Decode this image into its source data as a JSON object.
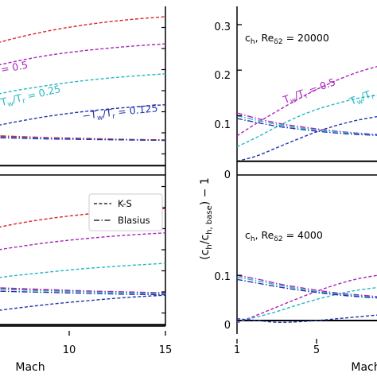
{
  "chart_data": [
    {
      "type": "line",
      "panel": "left-top",
      "xlabel": "",
      "ylabel": "",
      "xlim": [
        5,
        15
      ],
      "ylim": [
        -0.02,
        0.34
      ],
      "xticks": [],
      "yticks": [],
      "annotations": [
        {
          "text": "= 0.5",
          "color": "#aa22bb",
          "at": {
            "x": 5.25,
            "y": 0.21
          },
          "rotate": -11
        },
        {
          "text": "T_w/T_r = 0.25",
          "color": "#22b8c4",
          "at": {
            "x": 5.0,
            "y": 0.155
          },
          "rotate": -13
        },
        {
          "text": "T_w/T_r = 0.125",
          "color": "#2233aa",
          "at": {
            "x": 10.3,
            "y": 0.112
          },
          "rotate": -6
        }
      ],
      "series": [
        {
          "color": "#dd2222",
          "dash": "ks",
          "x": [
            5,
            7,
            9,
            11,
            13,
            15
          ],
          "y": [
            0.243,
            0.268,
            0.287,
            0.301,
            0.311,
            0.318
          ]
        },
        {
          "color": "#aa22bb",
          "dash": "ks",
          "x": [
            5,
            7,
            9,
            11,
            13,
            15
          ],
          "y": [
            0.199,
            0.219,
            0.235,
            0.246,
            0.254,
            0.26
          ]
        },
        {
          "color": "#22b8c4",
          "dash": "ks",
          "x": [
            5,
            7,
            9,
            11,
            13,
            15
          ],
          "y": [
            0.138,
            0.157,
            0.171,
            0.182,
            0.19,
            0.196
          ]
        },
        {
          "color": "#2233aa",
          "dash": "ks",
          "x": [
            5,
            7,
            9,
            11,
            13,
            15
          ],
          "y": [
            0.072,
            0.09,
            0.105,
            0.116,
            0.124,
            0.13
          ]
        },
        {
          "color": "#dd2222",
          "dash": "bl",
          "x": [
            5,
            7,
            9,
            11,
            13,
            15
          ],
          "y": [
            0.066,
            0.063,
            0.06,
            0.058,
            0.056,
            0.055
          ]
        },
        {
          "color": "#aa22bb",
          "dash": "bl",
          "x": [
            5,
            7,
            9,
            11,
            13,
            15
          ],
          "y": [
            0.064,
            0.061,
            0.059,
            0.057,
            0.055,
            0.054
          ]
        },
        {
          "color": "#22b8c4",
          "dash": "bl",
          "x": [
            5,
            7,
            9,
            11,
            13,
            15
          ],
          "y": [
            0.062,
            0.06,
            0.058,
            0.056,
            0.055,
            0.054
          ]
        },
        {
          "color": "#2233aa",
          "dash": "bl",
          "x": [
            5,
            7,
            9,
            11,
            13,
            15
          ],
          "y": [
            0.06,
            0.059,
            0.057,
            0.056,
            0.055,
            0.054
          ]
        }
      ]
    },
    {
      "type": "line",
      "panel": "left-bottom",
      "xlabel": "Mach",
      "ylabel": "",
      "xlim": [
        5,
        15
      ],
      "ylim": [
        -0.02,
        0.34
      ],
      "xticks": [
        10,
        15
      ],
      "yticks": [],
      "legend": {
        "placement": "top-right",
        "entries": [
          {
            "label": "K-S",
            "dash": "ks"
          },
          {
            "label": "Blasius",
            "dash": "bl"
          }
        ]
      },
      "series": [
        {
          "color": "#dd2222",
          "dash": "ks",
          "x": [
            5,
            7,
            9,
            11,
            13,
            15
          ],
          "y": [
            0.193,
            0.212,
            0.226,
            0.236,
            0.243,
            0.248
          ]
        },
        {
          "color": "#aa22bb",
          "dash": "ks",
          "x": [
            5,
            7,
            9,
            11,
            13,
            15
          ],
          "y": [
            0.149,
            0.163,
            0.175,
            0.184,
            0.191,
            0.196
          ]
        },
        {
          "color": "#22b8c4",
          "dash": "ks",
          "x": [
            5,
            7,
            9,
            11,
            13,
            15
          ],
          "y": [
            0.091,
            0.103,
            0.112,
            0.12,
            0.126,
            0.131
          ]
        },
        {
          "color": "#2233aa",
          "dash": "ks",
          "x": [
            5,
            7,
            9,
            11,
            13,
            15
          ],
          "y": [
            0.022,
            0.033,
            0.043,
            0.051,
            0.058,
            0.063
          ]
        },
        {
          "color": "#dd2222",
          "dash": "bl",
          "x": [
            5,
            7,
            9,
            11,
            13,
            15
          ],
          "y": [
            0.08,
            0.077,
            0.074,
            0.071,
            0.069,
            0.067
          ]
        },
        {
          "color": "#aa22bb",
          "dash": "bl",
          "x": [
            5,
            7,
            9,
            11,
            13,
            15
          ],
          "y": [
            0.082,
            0.078,
            0.075,
            0.072,
            0.07,
            0.068
          ]
        },
        {
          "color": "#22b8c4",
          "dash": "bl",
          "x": [
            5,
            7,
            9,
            11,
            13,
            15
          ],
          "y": [
            0.078,
            0.075,
            0.072,
            0.07,
            0.068,
            0.066
          ]
        },
        {
          "color": "#2233aa",
          "dash": "bl",
          "x": [
            5,
            7,
            9,
            11,
            13,
            15
          ],
          "y": [
            0.074,
            0.071,
            0.069,
            0.067,
            0.065,
            0.064
          ]
        }
      ]
    },
    {
      "type": "line",
      "panel": "right-top",
      "xlabel": "",
      "ylabel": "(c_h/c_h,base) − 1",
      "xlim": [
        1,
        8
      ],
      "ylim": [
        -0.03,
        0.34
      ],
      "xticks": [],
      "yticks": [
        0,
        0.1,
        0.2,
        0.3
      ],
      "ytick_labels": [
        "0",
        "0.1",
        "0.2",
        "0.3"
      ],
      "annotations": [
        {
          "text": "c_h,  Re_δ2 = 20000",
          "color": "#000000",
          "at": {
            "x": 1.35,
            "y": 0.29
          },
          "rotate": 0
        },
        {
          "text": "T_w/T_r = 0.5",
          "color": "#aa22bb",
          "at": {
            "x": 4.5,
            "y": 0.175
          },
          "rotate": -20
        },
        {
          "text": "T_w/T_r",
          "color": "#22b8c4",
          "at": {
            "x": 7.3,
            "y": 0.15
          },
          "rotate": -22
        }
      ],
      "series": [
        {
          "color": "#aa22bb",
          "dash": "ks",
          "x": [
            1,
            2,
            3,
            4,
            5,
            6,
            7,
            8
          ],
          "y": [
            0.056,
            0.084,
            0.11,
            0.135,
            0.158,
            0.178,
            0.195,
            0.208
          ]
        },
        {
          "color": "#22b8c4",
          "dash": "ks",
          "x": [
            1,
            2,
            3,
            4,
            5,
            6,
            7,
            8
          ],
          "y": [
            0.032,
            0.053,
            0.076,
            0.097,
            0.114,
            0.127,
            0.138,
            0.145
          ]
        },
        {
          "color": "#2233aa",
          "dash": "ks",
          "x": [
            1,
            2,
            3,
            4,
            5,
            6,
            7,
            8
          ],
          "y": [
            0.0,
            0.012,
            0.03,
            0.048,
            0.065,
            0.079,
            0.09,
            0.098
          ]
        },
        {
          "color": "#aa22bb",
          "dash": "bl",
          "x": [
            1,
            2,
            3,
            4,
            5,
            6,
            7,
            8
          ],
          "y": [
            0.106,
            0.094,
            0.084,
            0.077,
            0.071,
            0.066,
            0.062,
            0.059
          ]
        },
        {
          "color": "#22b8c4",
          "dash": "bl",
          "x": [
            1,
            2,
            3,
            4,
            5,
            6,
            7,
            8
          ],
          "y": [
            0.1,
            0.09,
            0.081,
            0.074,
            0.069,
            0.065,
            0.061,
            0.058
          ]
        },
        {
          "color": "#2233aa",
          "dash": "bl",
          "x": [
            1,
            2,
            3,
            4,
            5,
            6,
            7,
            8
          ],
          "y": [
            0.094,
            0.085,
            0.077,
            0.071,
            0.066,
            0.062,
            0.059,
            0.057
          ]
        }
      ]
    },
    {
      "type": "line",
      "panel": "right-bottom",
      "xlabel": "Mach",
      "ylabel": "(c_h/c_h,base) − 1",
      "xlim": [
        1,
        8
      ],
      "ylim": [
        -0.03,
        0.34
      ],
      "xticks": [
        1,
        5
      ],
      "yticks": [
        0,
        0.1
      ],
      "ytick_labels": [
        "0",
        "0.1"
      ],
      "annotations": [
        {
          "text": "c_h,  Re_δ2 = 4000",
          "color": "#000000",
          "at": {
            "x": 1.35,
            "y": 0.24
          },
          "rotate": 0
        }
      ],
      "series": [
        {
          "color": "#aa22bb",
          "dash": "ks",
          "x": [
            1,
            2,
            3,
            4,
            5,
            6,
            7,
            8
          ],
          "y": [
            -0.005,
            0.012,
            0.03,
            0.048,
            0.065,
            0.08,
            0.092,
            0.1
          ]
        },
        {
          "color": "#22b8c4",
          "dash": "ks",
          "x": [
            1,
            2,
            3,
            4,
            5,
            6,
            7,
            8
          ],
          "y": [
            -0.002,
            0.008,
            0.02,
            0.034,
            0.047,
            0.058,
            0.067,
            0.073
          ]
        },
        {
          "color": "#2233aa",
          "dash": "ks",
          "x": [
            1,
            2,
            3,
            4,
            5,
            6,
            7,
            8
          ],
          "y": [
            0.004,
            0.0,
            -0.004,
            -0.003,
            0.0,
            0.004,
            0.008,
            0.012
          ]
        },
        {
          "color": "#aa22bb",
          "dash": "bl",
          "x": [
            1,
            2,
            3,
            4,
            5,
            6,
            7,
            8
          ],
          "y": [
            0.1,
            0.092,
            0.082,
            0.074,
            0.067,
            0.061,
            0.057,
            0.053
          ]
        },
        {
          "color": "#22b8c4",
          "dash": "bl",
          "x": [
            1,
            2,
            3,
            4,
            5,
            6,
            7,
            8
          ],
          "y": [
            0.096,
            0.088,
            0.079,
            0.071,
            0.064,
            0.059,
            0.055,
            0.051
          ]
        },
        {
          "color": "#2233aa",
          "dash": "bl",
          "x": [
            1,
            2,
            3,
            4,
            5,
            6,
            7,
            8
          ],
          "y": [
            0.091,
            0.083,
            0.075,
            0.068,
            0.062,
            0.057,
            0.053,
            0.05
          ]
        }
      ]
    }
  ]
}
